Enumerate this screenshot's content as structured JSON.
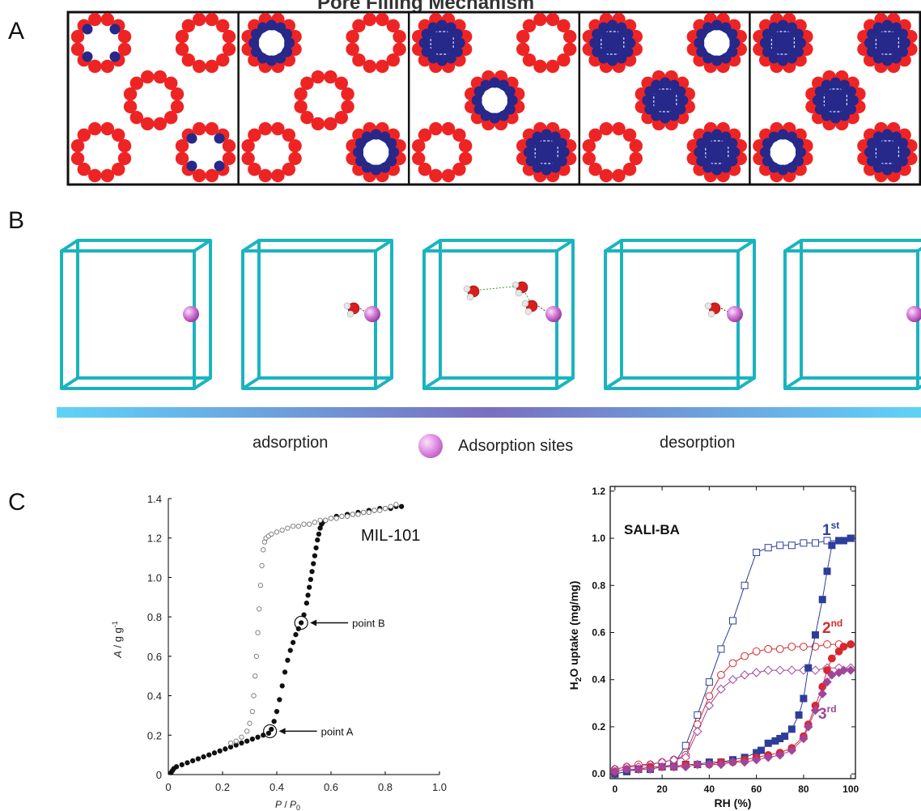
{
  "panels": {
    "a": {
      "letter": "A",
      "title": "Pore Filling Mechanism"
    },
    "b": {
      "letter": "B",
      "gradient_colors": [
        "#5fd3f5",
        "#7a6fc0",
        "#5fd3f5"
      ]
    },
    "c": {
      "letter": "C"
    }
  },
  "legend_b": {
    "left_label": "adsorption",
    "site_label": "Adsorption sites",
    "right_label": "desorption",
    "site_color": "#d27ad6"
  },
  "colors": {
    "framework_red": "#ee2424",
    "water_blue": "#26288a",
    "cube_cyan": "#1ab4be",
    "oxygen_red": "#d81e1e",
    "hydrogen_white": "#e6e6e6"
  },
  "chart_data": [
    {
      "type": "scatter",
      "title": "MIL-101",
      "xlabel_italic": "P",
      "xlabel_slash": " / ",
      "xlabel_italic2": "P",
      "xlabel_sub": "0",
      "ylabel_italic": "A",
      "ylabel_rest": " / g g",
      "ylabel_sup": "-1",
      "xlim": [
        0,
        1.0
      ],
      "ylim": [
        0,
        1.4
      ],
      "xticks": [
        "0",
        "0.2",
        "0.4",
        "0.6",
        "0.8",
        "1.0"
      ],
      "yticks": [
        "0",
        "0.2",
        "0.4",
        "0.6",
        "0.8",
        "1.0",
        "1.2",
        "1.4"
      ],
      "series": [
        {
          "style": "filled-black",
          "x": [
            0.01,
            0.015,
            0.02,
            0.03,
            0.05,
            0.07,
            0.09,
            0.11,
            0.13,
            0.15,
            0.17,
            0.19,
            0.21,
            0.23,
            0.25,
            0.27,
            0.29,
            0.31,
            0.33,
            0.35,
            0.37,
            0.38,
            0.39,
            0.4,
            0.41,
            0.42,
            0.43,
            0.44,
            0.45,
            0.46,
            0.47,
            0.48,
            0.49,
            0.5,
            0.51,
            0.515,
            0.52,
            0.525,
            0.53,
            0.535,
            0.54,
            0.545,
            0.55,
            0.555,
            0.56,
            0.565,
            0.57,
            0.58,
            0.6,
            0.62,
            0.64,
            0.66,
            0.68,
            0.7,
            0.72,
            0.74,
            0.76,
            0.78,
            0.8,
            0.82,
            0.84,
            0.86
          ],
          "y": [
            0.01,
            0.02,
            0.03,
            0.04,
            0.05,
            0.06,
            0.07,
            0.08,
            0.09,
            0.1,
            0.11,
            0.12,
            0.13,
            0.14,
            0.15,
            0.16,
            0.17,
            0.18,
            0.19,
            0.2,
            0.21,
            0.23,
            0.27,
            0.32,
            0.38,
            0.45,
            0.52,
            0.58,
            0.63,
            0.67,
            0.71,
            0.74,
            0.77,
            0.81,
            0.87,
            0.91,
            0.95,
            0.99,
            1.03,
            1.07,
            1.11,
            1.15,
            1.19,
            1.22,
            1.25,
            1.27,
            1.28,
            1.29,
            1.3,
            1.31,
            1.31,
            1.32,
            1.32,
            1.33,
            1.33,
            1.34,
            1.34,
            1.35,
            1.35,
            1.35,
            1.36,
            1.36
          ]
        },
        {
          "style": "open-gray",
          "x": [
            0.23,
            0.25,
            0.27,
            0.29,
            0.3,
            0.31,
            0.315,
            0.32,
            0.325,
            0.33,
            0.335,
            0.34,
            0.345,
            0.35,
            0.355,
            0.36,
            0.37,
            0.38,
            0.4,
            0.42,
            0.44,
            0.46,
            0.48,
            0.5,
            0.52,
            0.54,
            0.56,
            0.58,
            0.6,
            0.62,
            0.64,
            0.66,
            0.68,
            0.7,
            0.72,
            0.74,
            0.76,
            0.78,
            0.8,
            0.82,
            0.84
          ],
          "y": [
            0.16,
            0.17,
            0.19,
            0.22,
            0.26,
            0.32,
            0.4,
            0.5,
            0.6,
            0.72,
            0.84,
            0.96,
            1.06,
            1.14,
            1.18,
            1.2,
            1.21,
            1.22,
            1.23,
            1.24,
            1.25,
            1.26,
            1.26,
            1.27,
            1.27,
            1.28,
            1.29,
            1.29,
            1.3,
            1.3,
            1.31,
            1.31,
            1.32,
            1.32,
            1.33,
            1.33,
            1.34,
            1.34,
            1.35,
            1.36,
            1.37
          ]
        }
      ],
      "annotations": [
        {
          "label": "point A",
          "x": 0.375,
          "y": 0.22
        },
        {
          "label": "point B",
          "x": 0.49,
          "y": 0.77
        }
      ]
    },
    {
      "type": "line",
      "title": "SALI-BA",
      "xlabel": "RH (%)",
      "ylabel_main": "H",
      "ylabel_sub": "2",
      "ylabel_rest": "O uptake (mg/mg)",
      "xlim": [
        -2,
        102
      ],
      "ylim": [
        -0.02,
        1.22
      ],
      "xticks": [
        "0",
        "20",
        "40",
        "60",
        "80",
        "100"
      ],
      "yticks": [
        "0.0",
        "0.2",
        "0.4",
        "0.6",
        "0.8",
        "1.0",
        "1.2"
      ],
      "series": [
        {
          "label_main": "1",
          "label_sup": "st",
          "color": "#2d3e9a",
          "curve": "adsorption",
          "marker": "filled-square",
          "x": [
            0,
            5,
            10,
            15,
            20,
            25,
            30,
            35,
            40,
            45,
            50,
            55,
            60,
            62,
            65,
            68,
            70,
            72,
            75,
            78,
            80,
            82,
            85,
            88,
            90,
            92,
            95,
            97,
            100
          ],
          "y": [
            0.0,
            0.01,
            0.02,
            0.02,
            0.03,
            0.03,
            0.04,
            0.04,
            0.05,
            0.05,
            0.06,
            0.07,
            0.09,
            0.1,
            0.13,
            0.14,
            0.15,
            0.16,
            0.19,
            0.25,
            0.32,
            0.45,
            0.59,
            0.74,
            0.86,
            0.97,
            0.99,
            0.99,
            1.0
          ]
        },
        {
          "color": "#2d3e9a",
          "curve": "desorption",
          "marker": "open-square",
          "x": [
            0,
            5,
            10,
            15,
            20,
            25,
            30,
            35,
            40,
            45,
            50,
            55,
            60,
            65,
            70,
            75,
            80,
            85,
            90,
            95,
            100
          ],
          "y": [
            0.0,
            0.01,
            0.02,
            0.02,
            0.03,
            0.04,
            0.12,
            0.25,
            0.39,
            0.53,
            0.65,
            0.8,
            0.94,
            0.96,
            0.97,
            0.97,
            0.98,
            0.98,
            0.99,
            0.99,
            1.0
          ]
        },
        {
          "label_main": "2",
          "label_sup": "nd",
          "color": "#d8272e",
          "curve": "adsorption",
          "marker": "filled-circle",
          "x": [
            0,
            5,
            10,
            15,
            20,
            25,
            30,
            35,
            40,
            45,
            50,
            55,
            60,
            65,
            70,
            75,
            80,
            82,
            85,
            88,
            90,
            92,
            95,
            97,
            100
          ],
          "y": [
            0.01,
            0.02,
            0.02,
            0.03,
            0.03,
            0.03,
            0.04,
            0.04,
            0.04,
            0.05,
            0.05,
            0.06,
            0.07,
            0.08,
            0.09,
            0.11,
            0.16,
            0.21,
            0.29,
            0.37,
            0.44,
            0.49,
            0.52,
            0.54,
            0.55
          ]
        },
        {
          "color": "#d8272e",
          "curve": "desorption",
          "marker": "open-circle",
          "x": [
            0,
            5,
            10,
            15,
            20,
            25,
            30,
            35,
            40,
            45,
            50,
            55,
            60,
            65,
            70,
            75,
            80,
            85,
            90,
            95,
            100
          ],
          "y": [
            0.02,
            0.03,
            0.04,
            0.04,
            0.05,
            0.06,
            0.08,
            0.21,
            0.33,
            0.42,
            0.47,
            0.5,
            0.52,
            0.53,
            0.53,
            0.54,
            0.54,
            0.54,
            0.55,
            0.55,
            0.55
          ]
        },
        {
          "label_main": "3",
          "label_sup": "rd",
          "color": "#a2459a",
          "curve": "adsorption",
          "marker": "filled-diamond",
          "x": [
            0,
            5,
            10,
            15,
            20,
            25,
            30,
            35,
            40,
            45,
            50,
            55,
            60,
            65,
            70,
            75,
            80,
            82,
            85,
            88,
            90,
            92,
            95,
            97,
            100
          ],
          "y": [
            0.01,
            0.02,
            0.02,
            0.02,
            0.03,
            0.03,
            0.03,
            0.04,
            0.04,
            0.04,
            0.05,
            0.05,
            0.06,
            0.07,
            0.08,
            0.1,
            0.15,
            0.2,
            0.27,
            0.34,
            0.39,
            0.42,
            0.43,
            0.44,
            0.44
          ]
        },
        {
          "color": "#a2459a",
          "curve": "desorption",
          "marker": "open-diamond",
          "x": [
            0,
            5,
            10,
            15,
            20,
            25,
            30,
            35,
            40,
            45,
            50,
            55,
            60,
            65,
            70,
            75,
            80,
            85,
            90,
            95,
            100
          ],
          "y": [
            0.02,
            0.03,
            0.03,
            0.04,
            0.05,
            0.06,
            0.07,
            0.18,
            0.29,
            0.36,
            0.4,
            0.42,
            0.43,
            0.44,
            0.44,
            0.44,
            0.44,
            0.44,
            0.45,
            0.45,
            0.45
          ]
        }
      ]
    }
  ]
}
